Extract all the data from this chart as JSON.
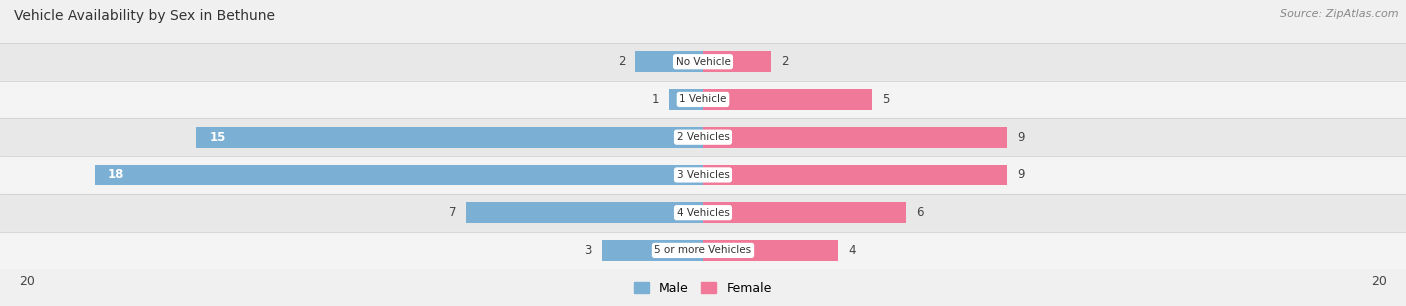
{
  "title": "Vehicle Availability by Sex in Bethune",
  "source": "Source: ZipAtlas.com",
  "categories": [
    "No Vehicle",
    "1 Vehicle",
    "2 Vehicles",
    "3 Vehicles",
    "4 Vehicles",
    "5 or more Vehicles"
  ],
  "male_values": [
    2,
    1,
    15,
    18,
    7,
    3
  ],
  "female_values": [
    2,
    5,
    9,
    9,
    6,
    4
  ],
  "male_color": "#7bafd4",
  "female_color": "#f07898",
  "male_label": "Male",
  "female_label": "Female",
  "x_max": 20,
  "row_colors": [
    "#e8e8e8",
    "#f4f4f4",
    "#e8e8e8",
    "#f4f4f4",
    "#e8e8e8",
    "#f4f4f4"
  ],
  "bg_color": "#f0f0f0",
  "title_fontsize": 10,
  "source_fontsize": 8,
  "bar_height": 0.55
}
